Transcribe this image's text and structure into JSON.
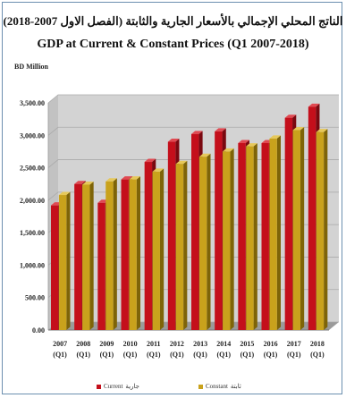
{
  "title_ar": "الناتج المحلي الإجمالي بالأسعار الجارية والثابتة (الفصل الاول 2007-2018)",
  "title_en": "GDP at Current & Constant Prices (Q1 2007-2018)",
  "unit_label": "BD Million",
  "colors": {
    "current": "#c40f1b",
    "current_dark": "#7a0810",
    "current_top": "#e04a52",
    "constant": "#c9a21c",
    "constant_dark": "#7e6408",
    "constant_top": "#e6c85a",
    "wall": "#d3d3d3",
    "floor": "#9a9a9a",
    "grid": "#aaaaaa"
  },
  "legend": {
    "current_en": "Current",
    "current_ar": "جارية",
    "constant_en": "Constant",
    "constant_ar": "ثابتة"
  },
  "chart_data": {
    "type": "bar",
    "title": "GDP at Current & Constant Prices (Q1 2007-2018)",
    "ylabel": "BD Million",
    "ylim": [
      0,
      3500
    ],
    "yticks": [
      "0.00",
      "500.00",
      "1,000.00",
      "1,500.00",
      "2,000.00",
      "2,500.00",
      "3,000.00",
      "3,500.00"
    ],
    "categories": [
      "2007",
      "2008",
      "2009",
      "2010",
      "2011",
      "2012",
      "2013",
      "2014",
      "2015",
      "2016",
      "2017",
      "2018"
    ],
    "category_sub": "(Q1)",
    "series": [
      {
        "name": "Current",
        "values": [
          1920,
          2250,
          1960,
          2320,
          2590,
          2900,
          3020,
          3060,
          2880,
          2880,
          3270,
          3440
        ]
      },
      {
        "name": "Constant",
        "values": [
          2080,
          2240,
          2290,
          2320,
          2440,
          2560,
          2670,
          2750,
          2830,
          2950,
          3080,
          3050
        ]
      }
    ],
    "legend_position": "bottom"
  }
}
